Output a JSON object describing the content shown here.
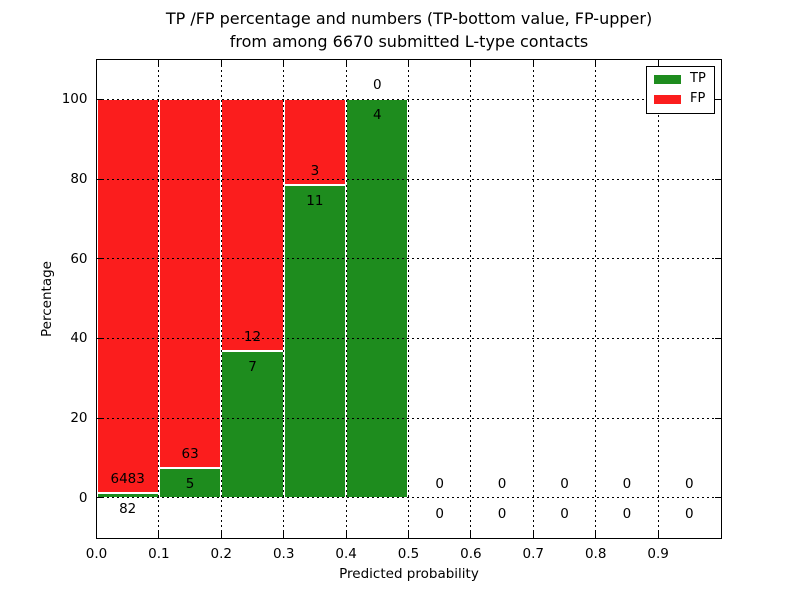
{
  "chart_data": {
    "type": "bar",
    "stacked": true,
    "title": "TP /FP percentage and numbers (TP-bottom value, FP-upper) from among 6670 submitted L-type contacts",
    "title_line1": "TP /FP percentage and numbers (TP-bottom value, FP-upper)",
    "title_line2": "from among 6670 submitted L-type contacts",
    "xlabel": "Predicted probability",
    "ylabel": "Percentage",
    "xlim": [
      0.0,
      1.0
    ],
    "ylim": [
      -10,
      110
    ],
    "xticks": [
      0.0,
      0.1,
      0.2,
      0.3,
      0.4,
      0.5,
      0.6,
      0.7,
      0.8,
      0.9
    ],
    "xtick_labels": [
      "0.0",
      "0.1",
      "0.2",
      "0.3",
      "0.4",
      "0.5",
      "0.6",
      "0.7",
      "0.8",
      "0.9"
    ],
    "yticks": [
      0,
      20,
      40,
      60,
      80,
      100
    ],
    "ytick_labels": [
      "0",
      "20",
      "40",
      "60",
      "80",
      "100"
    ],
    "grid": true,
    "legend_position": "upper right",
    "total_contacts": 6670,
    "series": [
      {
        "name": "TP",
        "color": "#1e8c1e",
        "counts": [
          82,
          5,
          7,
          11,
          4,
          0,
          0,
          0,
          0,
          0
        ]
      },
      {
        "name": "FP",
        "color": "#fb1d1d",
        "counts": [
          6483,
          63,
          12,
          3,
          0,
          0,
          0,
          0,
          0,
          0
        ]
      }
    ],
    "bins": [
      {
        "range": [
          0.0,
          0.1
        ],
        "tp": 82,
        "fp": 6483,
        "tp_pct": 1.25,
        "fp_pct": 98.75
      },
      {
        "range": [
          0.1,
          0.2
        ],
        "tp": 5,
        "fp": 63,
        "tp_pct": 7.35,
        "fp_pct": 92.65
      },
      {
        "range": [
          0.2,
          0.3
        ],
        "tp": 7,
        "fp": 12,
        "tp_pct": 36.84,
        "fp_pct": 63.16
      },
      {
        "range": [
          0.3,
          0.4
        ],
        "tp": 11,
        "fp": 3,
        "tp_pct": 78.57,
        "fp_pct": 21.43
      },
      {
        "range": [
          0.4,
          0.5
        ],
        "tp": 4,
        "fp": 0,
        "tp_pct": 100.0,
        "fp_pct": 0.0
      },
      {
        "range": [
          0.5,
          0.6
        ],
        "tp": 0,
        "fp": 0,
        "tp_pct": 0.0,
        "fp_pct": 0.0
      },
      {
        "range": [
          0.6,
          0.7
        ],
        "tp": 0,
        "fp": 0,
        "tp_pct": 0.0,
        "fp_pct": 0.0
      },
      {
        "range": [
          0.7,
          0.8
        ],
        "tp": 0,
        "fp": 0,
        "tp_pct": 0.0,
        "fp_pct": 0.0
      },
      {
        "range": [
          0.8,
          0.9
        ],
        "tp": 0,
        "fp": 0,
        "tp_pct": 0.0,
        "fp_pct": 0.0
      },
      {
        "range": [
          0.9,
          1.0
        ],
        "tp": 0,
        "fp": 0,
        "tp_pct": 0.0,
        "fp_pct": 0.0
      }
    ]
  }
}
